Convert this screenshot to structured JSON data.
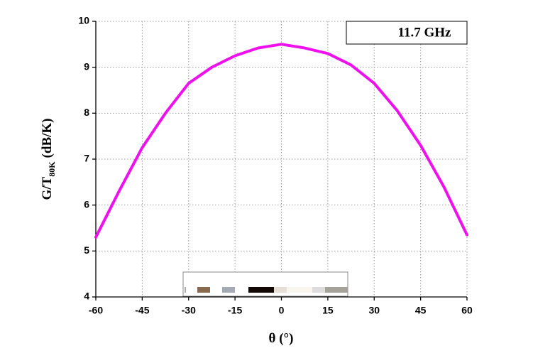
{
  "chart_data": {
    "type": "line",
    "x": [
      -60,
      -52.5,
      -45,
      -37.5,
      -30,
      -22.5,
      -15,
      -7.5,
      0,
      7.5,
      15,
      22.5,
      30,
      37.5,
      45,
      52.5,
      60
    ],
    "values": [
      5.3,
      6.3,
      7.25,
      8.0,
      8.65,
      9.0,
      9.25,
      9.42,
      9.5,
      9.42,
      9.3,
      9.05,
      8.65,
      8.05,
      7.3,
      6.4,
      5.35
    ],
    "color": "#ee11ee",
    "annotation": "11.7 GHz",
    "x_label": "θ (°)",
    "y_label": "G/T",
    "y_label_sub": "80K",
    "y_label_unit": "(dB/K)",
    "xlim": [
      -60,
      60
    ],
    "xticks": [
      -60,
      -45,
      -30,
      -15,
      0,
      15,
      30,
      45,
      60
    ],
    "ylim": [
      4,
      10
    ],
    "yticks": [
      4,
      5,
      6,
      7,
      8,
      9,
      10
    ],
    "grid": true
  }
}
